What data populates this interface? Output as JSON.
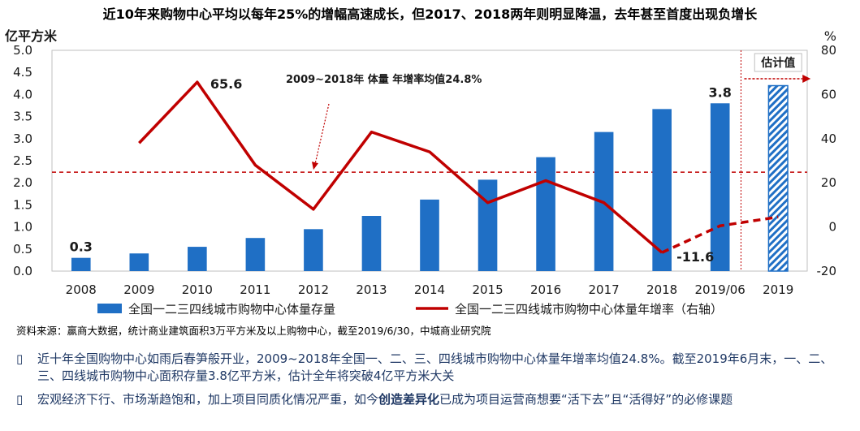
{
  "headline": "近10年来购物中心平均以每年25%的增幅高速成长，但2017、2018两年则明显降温，去年甚至首度出现负增长",
  "colors": {
    "bar": "#1f6fc5",
    "line": "#c00000",
    "avg_line": "#c00000",
    "estimate_bar": "#1f6fc5"
  },
  "chart_data": {
    "type": "bar",
    "categories": [
      "2008",
      "2009",
      "2010",
      "2011",
      "2012",
      "2013",
      "2014",
      "2015",
      "2016",
      "2017",
      "2018",
      "2019/06",
      "2019"
    ],
    "series": [
      {
        "name": "全国一二三四线城市购物中心体量存量",
        "axis": "left",
        "values": [
          0.3,
          0.4,
          0.55,
          0.75,
          0.95,
          1.25,
          1.62,
          2.07,
          2.58,
          3.15,
          3.67,
          3.8,
          4.2
        ],
        "estimate_index": 12
      },
      {
        "name": "全国一二三四线城市购物中心体量年增率（右轴）",
        "axis": "right",
        "type": "line",
        "values": [
          null,
          38,
          65.6,
          28,
          8,
          43,
          34,
          11,
          21,
          11,
          -11.6,
          0.5,
          4.5
        ],
        "dashed_from_index": 10
      }
    ],
    "left_axis": {
      "label": "亿平方米",
      "ylim": [
        0,
        5.0
      ],
      "ticks": [
        "0.0",
        "0.5",
        "1.0",
        "1.5",
        "2.0",
        "2.5",
        "3.0",
        "3.5",
        "4.0",
        "4.5",
        "5.0"
      ]
    },
    "right_axis": {
      "label": "%",
      "ylim": [
        -20,
        80
      ],
      "ticks": [
        "-20",
        "0",
        "20",
        "40",
        "60",
        "80"
      ]
    },
    "average_growth": 24.8,
    "data_labels": [
      {
        "index": 0,
        "series": 0,
        "text": "0.3"
      },
      {
        "index": 2,
        "series": 1,
        "text": "65.6"
      },
      {
        "index": 11,
        "series": 0,
        "text": "3.8"
      },
      {
        "index": 10,
        "series": 1,
        "text": "-11.6"
      }
    ],
    "annotation": "2009~2018年 体量 年增率均值24.8%",
    "estimate_label": "估计值"
  },
  "source": "资料来源：赢商大数据，统计商业建筑面积3万平方米及以上购物中心，截至2019/6/30，中城商业研究院",
  "bullets": [
    {
      "mark": "▯",
      "text": "近十年全国购物中心如雨后春笋般开业，2009~2018年全国一、二、三、四线城市购物中心体量年增率均值24.8%。截至2019年6月末，一、二、三、四线城市购物中心面积存量3.8亿平方米，估计全年将突破4亿平方米大关"
    },
    {
      "mark": "▯",
      "text_before": "宏观经济下行、市场渐趋饱和，加上项目同质化情况严重，如今",
      "highlight": "创造差异化",
      "text_after": "已成为项目运营商想要“活下去”且“活得好”的必修课题"
    }
  ]
}
